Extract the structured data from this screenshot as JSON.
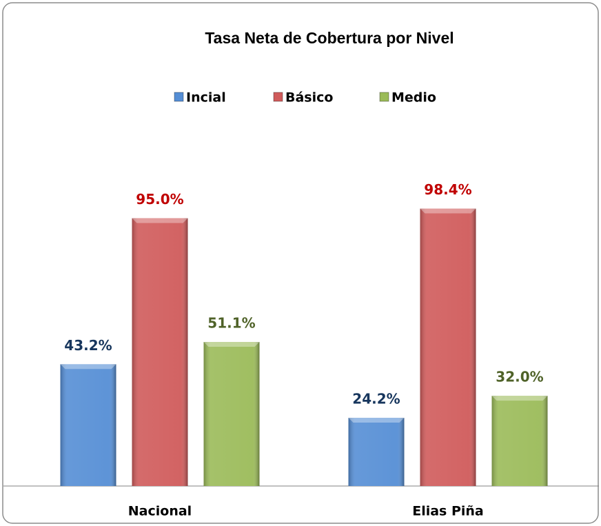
{
  "chart_data": {
    "type": "bar",
    "title": "Tasa Neta de Cobertura por Nivel",
    "categories": [
      "Nacional",
      "Elias Piña"
    ],
    "series": [
      {
        "name": "Incial",
        "color": "#558ed5",
        "label_color": "#17365d",
        "values": [
          43.2,
          24.2
        ],
        "value_labels": [
          "43.2%",
          "24.2%"
        ]
      },
      {
        "name": "Básico",
        "color": "#d05b5b",
        "label_color": "#c00000",
        "values": [
          95.0,
          98.4
        ],
        "value_labels": [
          "95.0%",
          "98.4%"
        ]
      },
      {
        "name": "Medio",
        "color": "#9bbb59",
        "label_color": "#4f6228",
        "values": [
          51.1,
          32.0
        ],
        "value_labels": [
          "51.1%",
          "32.0%"
        ]
      }
    ],
    "ylim": [
      0,
      100
    ],
    "legend": "top"
  }
}
